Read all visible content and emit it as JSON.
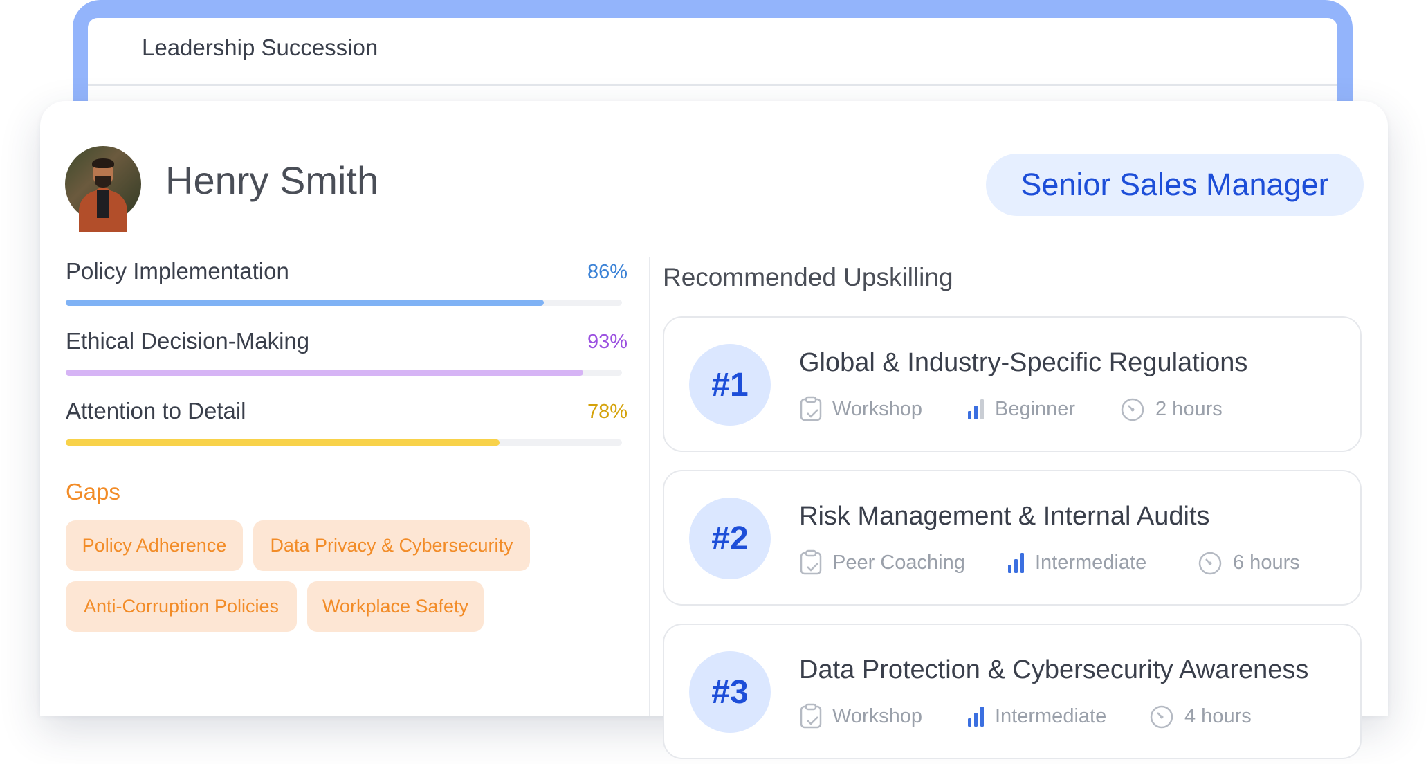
{
  "background_window": {
    "title": "Leadership Succession"
  },
  "profile": {
    "name": "Henry Smith",
    "role": "Senior Sales Manager"
  },
  "skills": [
    {
      "name": "Policy Implementation",
      "percent_label": "86%",
      "value": 0.86,
      "color": "#7fb2f5",
      "label_color": "#3b82d6"
    },
    {
      "name": "Ethical Decision-Making",
      "percent_label": "93%",
      "value": 0.93,
      "color": "#d6b4f5",
      "label_color": "#9b51e0"
    },
    {
      "name": "Attention to Detail",
      "percent_label": "78%",
      "value": 0.78,
      "color": "#f8d24a",
      "label_color": "#d4a20a"
    }
  ],
  "gaps": {
    "title": "Gaps",
    "items": [
      "Policy Adherence",
      "Data Privacy & Cybersecurity",
      "Anti-Corruption Policies",
      "Workplace Safety"
    ]
  },
  "upskilling": {
    "title": "Recommended Upskilling",
    "items": [
      {
        "rank": "#1",
        "name": "Global & Industry-Specific Regulations",
        "format": "Workshop",
        "level": "Beginner",
        "duration": "2 hours"
      },
      {
        "rank": "#2",
        "name": "Risk Management & Internal Audits",
        "format": "Peer Coaching",
        "level": "Intermediate",
        "duration": "6 hours"
      },
      {
        "rank": "#3",
        "name": "Data Protection & Cybersecurity Awareness",
        "format": "Workshop",
        "level": "Intermediate",
        "duration": "4 hours"
      }
    ]
  },
  "icons": {
    "format": "clipboard-check-icon",
    "level": "bar-chart-icon",
    "duration": "timer-icon"
  },
  "colors": {
    "accent_blue": "#1d4ed8",
    "gap_orange": "#f28c28",
    "frame_blue": "#93b4fb"
  }
}
